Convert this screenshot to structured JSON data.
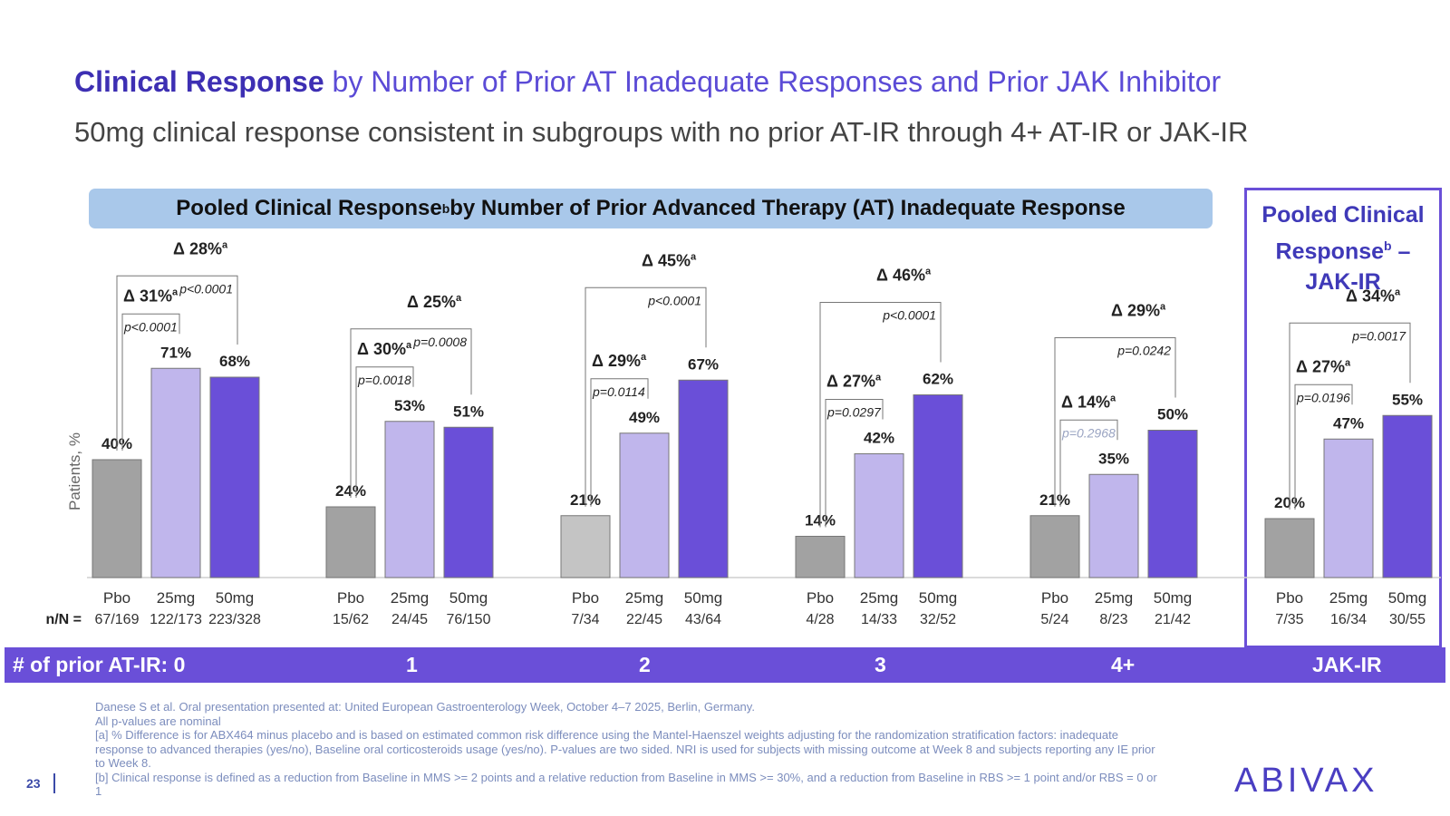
{
  "header": {
    "title_bold": "Clinical Response",
    "title_rest": " by Number of Prior AT Inadequate Responses and Prior JAK Inhibitor",
    "subtitle": "50mg clinical response consistent in subgroups with no prior AT-IR through 4+ AT-IR or JAK-IR"
  },
  "banner": {
    "prefix": "Pooled Clinical Response",
    "sup": "b",
    "suffix": " by Number of Prior Advanced Therapy (AT) Inadequate Response"
  },
  "jak_panel": {
    "line1": "Pooled Clinical",
    "line2_prefix": "Response",
    "line2_sup": "b",
    "line2_suffix": " –",
    "line3": "JAK-IR"
  },
  "colors": {
    "pbo": "#a2a2a2",
    "pbo_light": "#c4c4c4",
    "mg25": "#c0b6ec",
    "mg50": "#6a4fd8",
    "accent": "#6a4fd8",
    "title": "#3d2fb3"
  },
  "chart_data": {
    "type": "bar",
    "ylabel": "Patients, %",
    "ylim": [
      0,
      80
    ],
    "nn_label": "n/N =",
    "series_labels": [
      "Pbo",
      "25mg",
      "50mg"
    ],
    "groups": [
      {
        "name": "0",
        "values": [
          40,
          71,
          68
        ],
        "nn": [
          "67/169",
          "122/173",
          "223/328"
        ],
        "delta25": {
          "delta": "Δ 31%",
          "p": "p<0.0001"
        },
        "delta50": {
          "delta": "Δ 28%",
          "p": "p<0.0001"
        }
      },
      {
        "name": "1",
        "values": [
          24,
          53,
          51
        ],
        "nn": [
          "15/62",
          "24/45",
          "76/150"
        ],
        "delta25": {
          "delta": "Δ 30%",
          "p": "p=0.0018"
        },
        "delta50": {
          "delta": "Δ 25%",
          "p": "p=0.0008"
        }
      },
      {
        "name": "2",
        "values": [
          21,
          49,
          67
        ],
        "nn": [
          "7/34",
          "22/45",
          "43/64"
        ],
        "pbo_light": true,
        "delta25": {
          "delta": "Δ 29%",
          "p": "p=0.0114"
        },
        "delta50": {
          "delta": "Δ 45%",
          "p": "p<0.0001"
        }
      },
      {
        "name": "3",
        "values": [
          14,
          42,
          62
        ],
        "nn": [
          "4/28",
          "14/33",
          "32/52"
        ],
        "delta25": {
          "delta": "Δ 27%",
          "p": "p=0.0297"
        },
        "delta50": {
          "delta": "Δ 46%",
          "p": "p<0.0001"
        }
      },
      {
        "name": "4+",
        "values": [
          21,
          35,
          50
        ],
        "nn": [
          "5/24",
          "8/23",
          "21/42"
        ],
        "delta25": {
          "delta": "Δ 14%",
          "p": "p=0.2968",
          "faded": true
        },
        "delta50": {
          "delta": "Δ 29%",
          "p": "p=0.0242"
        }
      },
      {
        "name": "JAK-IR",
        "values": [
          20,
          47,
          55
        ],
        "nn": [
          "7/35",
          "16/34",
          "30/55"
        ],
        "delta25": {
          "delta": "Δ 27%",
          "p": "p=0.0196"
        },
        "delta50": {
          "delta": "Δ 34%",
          "p": "p=0.0017"
        }
      }
    ],
    "delta_sup": "a"
  },
  "bottom_bar": {
    "labels": [
      "# of prior AT-IR: 0",
      "1",
      "2",
      "3",
      "4+",
      "JAK-IR"
    ]
  },
  "footnotes": [
    "Danese S et al. Oral presentation presented at: United European Gastroenterology Week, October 4–7 2025, Berlin, Germany.",
    "All p-values are nominal",
    "[a] % Difference is for ABX464 minus placebo and is based on estimated common risk difference using the Mantel-Haenszel weights adjusting for the randomization stratification factors: inadequate response to advanced therapies (yes/no), Baseline oral corticosteroids usage (yes/no). P-values are two sided. NRI is used for subjects with missing outcome at Week 8 and subjects reporting any IE prior to Week 8.",
    "[b] Clinical response is defined as a reduction from Baseline in MMS >= 2 points and a relative reduction from Baseline in MMS >= 30%, and a reduction from Baseline in RBS >= 1 point and/or RBS = 0 or 1"
  ],
  "page_number": "23",
  "logo_text": "ABIVAX"
}
